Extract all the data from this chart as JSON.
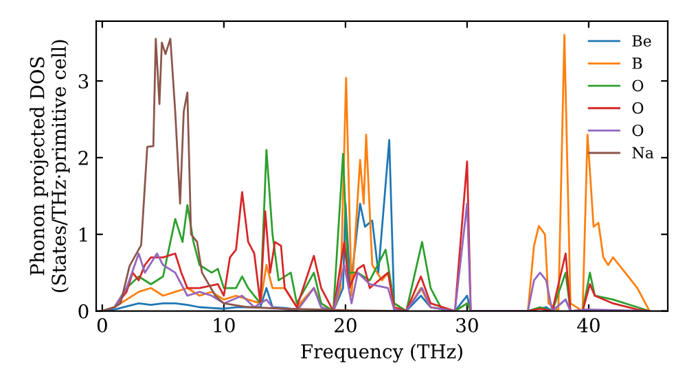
{
  "chart_data": {
    "type": "line",
    "xlabel": "Frequency (THz)",
    "ylabel": "Phonon projected DOS\n(States/THz·primitive cell)",
    "xlim": [
      -0.5,
      46.5
    ],
    "ylim": [
      0,
      3.78
    ],
    "xticks": [
      0,
      10,
      20,
      30,
      40
    ],
    "yticks": [
      0,
      1,
      2,
      3
    ],
    "legend": "top right",
    "grid": false,
    "line_style": "solid",
    "marker": "none",
    "series": [
      {
        "name": "Be",
        "color": "#1f77b4",
        "x": [
          0,
          1,
          2,
          3,
          4,
          5,
          6,
          7,
          8,
          9,
          10,
          11,
          12,
          13,
          13.5,
          14,
          15,
          16,
          17.4,
          18,
          19,
          19.8,
          20.0,
          20.4,
          21.2,
          21.6,
          22.2,
          22.7,
          23.6,
          24.0,
          25,
          26.2,
          27,
          29,
          30,
          30.3,
          35,
          36.5,
          37,
          38.1,
          38.5,
          40
        ],
        "values": [
          0,
          0.02,
          0.06,
          0.1,
          0.08,
          0.1,
          0.1,
          0.08,
          0.05,
          0.04,
          0.03,
          0.05,
          0.05,
          0.05,
          0.3,
          0.05,
          0.04,
          0.02,
          0.3,
          0.05,
          0,
          0.3,
          1.4,
          0.3,
          1.4,
          1.1,
          1.18,
          0.5,
          2.23,
          0.1,
          0,
          0.2,
          0.05,
          0,
          0.2,
          0,
          0,
          0.05,
          0,
          0.15,
          0,
          0.02
        ]
      },
      {
        "name": "B",
        "color": "#ff7f0e",
        "x": [
          0,
          1,
          2,
          3,
          4,
          5,
          6,
          7,
          8,
          9,
          10,
          11,
          12,
          13,
          13.5,
          14,
          15,
          16,
          17.4,
          18,
          19,
          19.6,
          20.05,
          20.5,
          21.2,
          21.5,
          21.7,
          22.2,
          23,
          23.5,
          24,
          25,
          26.2,
          27,
          29,
          30,
          30.3,
          35,
          35.5,
          35.9,
          36.4,
          36.7,
          37.5,
          38.0,
          38.5,
          39.5,
          39.9,
          40.4,
          40.8,
          41.2,
          41.6,
          42,
          42.5,
          43,
          44,
          45
        ],
        "values": [
          0,
          0.05,
          0.15,
          0.25,
          0.3,
          0.2,
          0.25,
          0.3,
          0.2,
          0.25,
          0.15,
          0.2,
          0.15,
          0.1,
          0.6,
          0.3,
          0.3,
          0.05,
          0.3,
          0.1,
          0,
          0.3,
          3.04,
          0.2,
          1.97,
          1.4,
          2.3,
          0.6,
          0.4,
          0.5,
          0.1,
          0,
          0.3,
          0.05,
          0,
          0.1,
          0,
          0,
          0.85,
          1.11,
          1.0,
          0.1,
          0,
          3.6,
          0.1,
          0,
          2.3,
          1.1,
          1.15,
          0.7,
          0.6,
          0.7,
          0.6,
          0.5,
          0.3,
          0
        ]
      },
      {
        "name": "O",
        "color": "#2ca02c",
        "x": [
          0,
          1,
          2,
          3,
          4,
          5,
          6,
          6.6,
          7,
          7.5,
          8,
          9,
          9.5,
          10,
          11,
          11.5,
          12,
          13,
          13.5,
          14,
          14.5,
          15.5,
          16,
          17.4,
          18,
          19,
          19.8,
          20.2,
          21,
          22,
          23.3,
          24,
          25,
          26.3,
          27,
          28,
          29,
          30,
          30.3,
          35,
          36,
          37,
          38.1,
          38.5,
          39.5,
          40.1,
          40.5,
          42,
          44,
          45
        ],
        "values": [
          0,
          0.05,
          0.3,
          0.45,
          0.35,
          0.45,
          1.2,
          0.9,
          1.38,
          0.9,
          0.6,
          0.5,
          0.55,
          0.3,
          0.3,
          0.45,
          0.3,
          0.1,
          2.1,
          1.0,
          0.4,
          0.5,
          0.1,
          0.5,
          0.1,
          0,
          2.05,
          0.5,
          0.5,
          0.4,
          0.8,
          0.1,
          0,
          0.9,
          0.3,
          0,
          0,
          0.1,
          0,
          0,
          0.05,
          0,
          0.5,
          0,
          0,
          0.5,
          0.2,
          0.15,
          0.05,
          0
        ]
      },
      {
        "name": "O",
        "color": "#d62728",
        "x": [
          0,
          1,
          2,
          2.5,
          3,
          3.5,
          4,
          5,
          6,
          6.5,
          7,
          8,
          9.5,
          10,
          10.5,
          11,
          11.5,
          12,
          12.5,
          13,
          13.4,
          13.8,
          14.2,
          14.7,
          15,
          16,
          17.4,
          18,
          19,
          19.9,
          20.3,
          21,
          21.5,
          22,
          23.5,
          24,
          25,
          26.2,
          27,
          29,
          30,
          30.3,
          35,
          36,
          37,
          38.1,
          38.5,
          39.5,
          40.1,
          40.5,
          42,
          44,
          45
        ],
        "values": [
          0,
          0.05,
          0.25,
          0.5,
          0.4,
          0.6,
          0.7,
          0.7,
          0.75,
          0.5,
          0.3,
          0.3,
          0.35,
          0.2,
          0.7,
          0.8,
          1.55,
          0.9,
          0.75,
          0.1,
          1.3,
          0.5,
          0.9,
          0.85,
          0.3,
          0.05,
          0.72,
          0.3,
          0,
          0.9,
          0.3,
          0.55,
          0.6,
          0.3,
          0.5,
          0.05,
          0,
          0.45,
          0.1,
          0,
          1.95,
          0,
          0,
          0.03,
          0,
          0.75,
          0,
          0,
          0.35,
          0.2,
          0.1,
          0.02,
          0
        ]
      },
      {
        "name": "O",
        "color": "#9467bd",
        "x": [
          0,
          1,
          2,
          3,
          3.5,
          4.5,
          5,
          6,
          7,
          8,
          9,
          10,
          11.5,
          12.5,
          13.5,
          14,
          16,
          17.4,
          18,
          19,
          19.9,
          20.5,
          21,
          22,
          23.5,
          24,
          25,
          26.3,
          27,
          29,
          30,
          30.3,
          35,
          35.5,
          36,
          36.5,
          37,
          38.1,
          38.5,
          40,
          45
        ],
        "values": [
          0,
          0.05,
          0.3,
          0.75,
          0.5,
          0.75,
          0.6,
          0.5,
          0.2,
          0.25,
          0.2,
          0.1,
          0.2,
          0.05,
          0.15,
          0.05,
          0,
          0.3,
          0.05,
          0,
          0.6,
          0.1,
          0.5,
          0.35,
          0.3,
          0.02,
          0,
          0.3,
          0.05,
          0,
          1.4,
          0,
          0,
          0.4,
          0.5,
          0.4,
          0,
          0.15,
          0,
          0.02,
          0
        ]
      },
      {
        "name": "Na",
        "color": "#8c564b",
        "x": [
          0,
          1,
          1.5,
          2.25,
          3.2,
          3.7,
          4.2,
          4.4,
          4.7,
          4.9,
          5.2,
          5.6,
          6.0,
          6.4,
          6.7,
          7.0,
          7.3,
          7.8,
          8.2,
          9.3,
          10,
          12,
          15,
          20,
          25
        ],
        "values": [
          0,
          0.05,
          0.1,
          0.59,
          0.86,
          2.14,
          2.15,
          3.55,
          2.7,
          3.5,
          3.35,
          3.55,
          2.6,
          1.4,
          2.6,
          2.85,
          1.0,
          0.9,
          0.5,
          0.2,
          0.1,
          0.05,
          0.03,
          0.01,
          0
        ]
      }
    ]
  }
}
